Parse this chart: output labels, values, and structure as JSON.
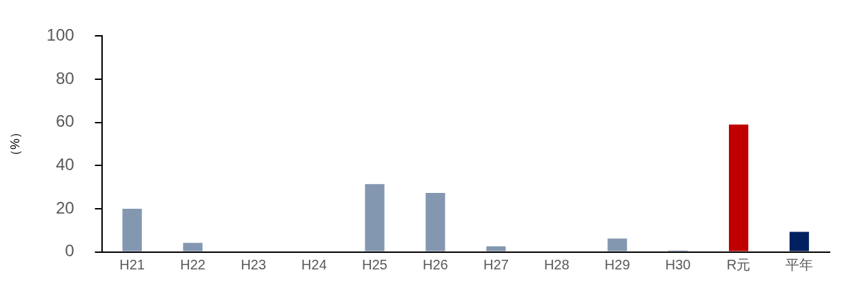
{
  "chart_data": {
    "type": "bar",
    "ylabel": "（%）",
    "categories": [
      "H21",
      "H22",
      "H23",
      "H24",
      "H25",
      "H26",
      "H27",
      "H28",
      "H29",
      "H30",
      "R元",
      "平年"
    ],
    "values": [
      20.0,
      4.2,
      0,
      0,
      31.4,
      27.3,
      2.6,
      0,
      6.2,
      0.7,
      59.0,
      9.3
    ],
    "colors": [
      "#8497b0",
      "#8497b0",
      "#8497b0",
      "#8497b0",
      "#8497b0",
      "#8497b0",
      "#8497b0",
      "#8497b0",
      "#8497b0",
      "#8497b0",
      "#c00000",
      "#002060"
    ],
    "ylim": [
      0,
      100
    ],
    "yticks": [
      0,
      20,
      40,
      60,
      80,
      100
    ],
    "grid": false,
    "legend": false
  }
}
